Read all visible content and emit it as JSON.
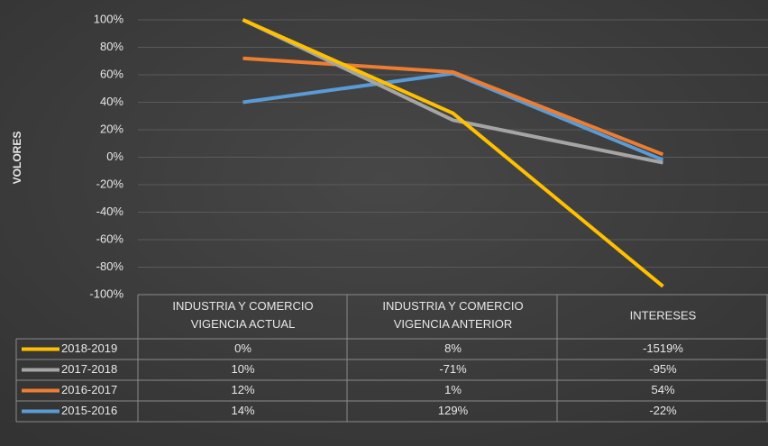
{
  "chart_data": {
    "type": "line",
    "y_axis_label": "VOLORES",
    "categories": [
      "INDUSTRIA Y COMERCIO VIGENCIA ACTUAL",
      "INDUSTRIA Y COMERCIO VIGENCIA ANTERIOR",
      "INTERESES"
    ],
    "series": [
      {
        "name": "2018-2019",
        "color": "#ffc000",
        "values": [
          100,
          32,
          -94
        ]
      },
      {
        "name": "2017-2018",
        "color": "#a5a5a5",
        "values": [
          100,
          27,
          -4
        ]
      },
      {
        "name": "2016-2017",
        "color": "#ed7d31",
        "values": [
          72,
          62,
          2
        ]
      },
      {
        "name": "2015-2016",
        "color": "#5b9bd5",
        "values": [
          40,
          61,
          -2
        ]
      }
    ],
    "ylim": [
      -100,
      100
    ],
    "yticks": [
      {
        "value": -100,
        "label": "-100%"
      },
      {
        "value": -80,
        "label": "-80%"
      },
      {
        "value": -60,
        "label": "-60%"
      },
      {
        "value": -40,
        "label": "-40%"
      },
      {
        "value": -20,
        "label": "-20%"
      },
      {
        "value": 0,
        "label": "0%"
      },
      {
        "value": 20,
        "label": "20%"
      },
      {
        "value": 40,
        "label": "40%"
      },
      {
        "value": 60,
        "label": "60%"
      },
      {
        "value": 80,
        "label": "80%"
      },
      {
        "value": 100,
        "label": "100%"
      }
    ],
    "grid": true,
    "data_table": {
      "rows": [
        [
          "0%",
          "8%",
          "-1519%"
        ],
        [
          "10%",
          "-71%",
          "-95%"
        ],
        [
          "12%",
          "1%",
          "54%"
        ],
        [
          "14%",
          "129%",
          "-22%"
        ]
      ]
    }
  }
}
